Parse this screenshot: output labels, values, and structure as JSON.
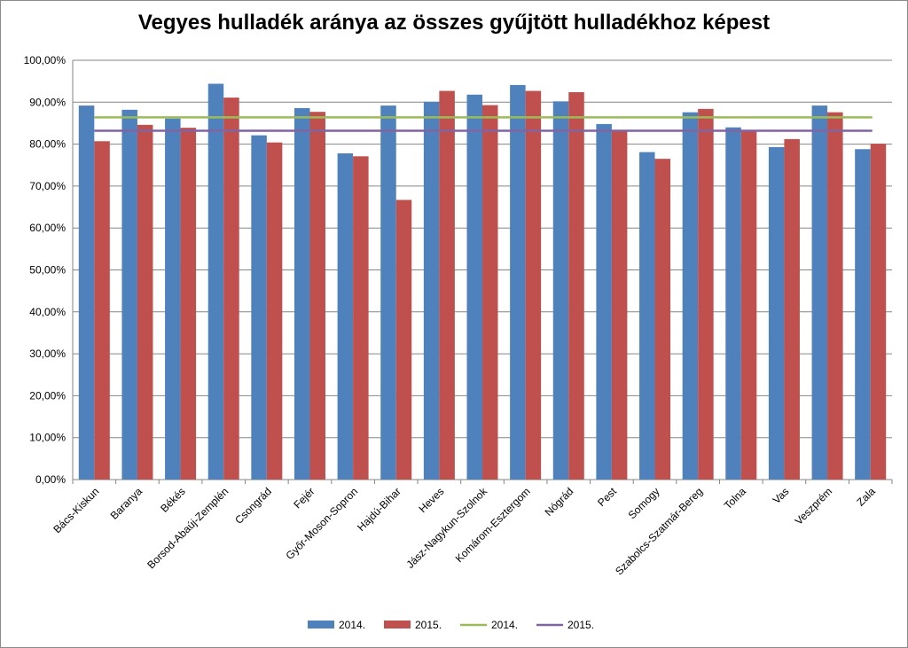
{
  "chart_data": {
    "type": "bar",
    "title": "Vegyes hulladék aránya az összes gyűjtött hulladékhoz képest",
    "xlabel": "",
    "ylabel": "",
    "ylim": [
      0,
      100
    ],
    "y_ticks": [
      "0,00%",
      "10,00%",
      "20,00%",
      "30,00%",
      "40,00%",
      "50,00%",
      "60,00%",
      "70,00%",
      "80,00%",
      "90,00%",
      "100,00%"
    ],
    "categories": [
      "Bács-Kiskun",
      "Baranya",
      "Békés",
      "Borsod-Abaúj-Zemplén",
      "Csongrád",
      "Fejér",
      "Győr-Moson-Sopron",
      "Hajdú-Bihar",
      "Heves",
      "Jász-Nagykun-Szolnok",
      "Komárom-Esztergom",
      "Nógrád",
      "Pest",
      "Somogy",
      "Szabolcs-Szatmár-Bereg",
      "Tolna",
      "Vas",
      "Veszprém",
      "Zala"
    ],
    "series": [
      {
        "name": "2014.",
        "type": "bar",
        "color": "#4f81bd",
        "values": [
          89.2,
          88.2,
          86.1,
          94.4,
          82.1,
          88.6,
          77.8,
          89.2,
          90.1,
          91.8,
          94.1,
          90.2,
          84.8,
          78.1,
          87.6,
          84.0,
          79.3,
          89.2,
          78.8
        ]
      },
      {
        "name": "2015.",
        "type": "bar",
        "color": "#c0504d",
        "values": [
          80.7,
          84.6,
          83.9,
          91.1,
          80.4,
          87.7,
          77.1,
          66.7,
          92.7,
          89.3,
          92.7,
          92.4,
          83.1,
          76.5,
          88.4,
          83.4,
          81.2,
          87.6,
          80.1
        ]
      },
      {
        "name": "2014.",
        "type": "line",
        "color": "#9bbb59",
        "value": 86.4
      },
      {
        "name": "2015.",
        "type": "line",
        "color": "#8064a2",
        "value": 83.2
      }
    ],
    "grid": true,
    "legend_position": "bottom"
  }
}
